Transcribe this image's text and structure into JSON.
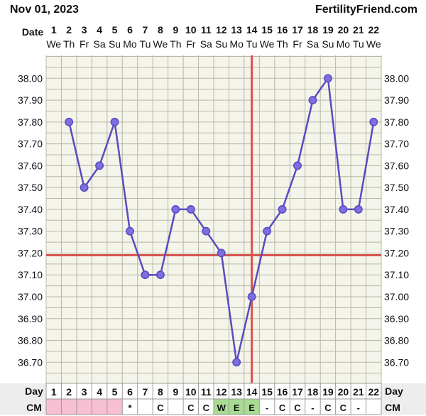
{
  "header": {
    "date": "Nov 01, 2023",
    "site": "FertilityFriend.com"
  },
  "chart_data": {
    "type": "line",
    "row_labels": {
      "date": "Date",
      "day": "Day",
      "cm": "CM"
    },
    "dates": [
      "1",
      "2",
      "3",
      "4",
      "5",
      "6",
      "7",
      "8",
      "9",
      "10",
      "11",
      "12",
      "13",
      "14",
      "15",
      "16",
      "17",
      "18",
      "19",
      "20",
      "21",
      "22"
    ],
    "weekdays": [
      "We",
      "Th",
      "Fr",
      "Sa",
      "Su",
      "Mo",
      "Tu",
      "We",
      "Th",
      "Fr",
      "Sa",
      "Su",
      "Mo",
      "Tu",
      "We",
      "Th",
      "Fr",
      "Sa",
      "Su",
      "Mo",
      "Tu",
      "We"
    ],
    "days": [
      "1",
      "2",
      "3",
      "4",
      "5",
      "6",
      "7",
      "8",
      "9",
      "10",
      "11",
      "12",
      "13",
      "14",
      "15",
      "16",
      "17",
      "18",
      "19",
      "20",
      "21",
      "22"
    ],
    "y_ticks": [
      "38.00",
      "37.90",
      "37.80",
      "37.70",
      "37.60",
      "37.50",
      "37.40",
      "37.30",
      "37.20",
      "37.10",
      "37.00",
      "36.90",
      "36.80",
      "36.70"
    ],
    "ylim": [
      36.6,
      38.1
    ],
    "series": [
      {
        "x": [
          2,
          3,
          4,
          5,
          6,
          7,
          8,
          9,
          10,
          11,
          12,
          13,
          14,
          15,
          16,
          17,
          18,
          19,
          20,
          21,
          22
        ],
        "values": [
          37.8,
          37.5,
          37.6,
          37.8,
          37.3,
          37.1,
          37.1,
          37.4,
          37.4,
          37.3,
          37.2,
          36.7,
          37.0,
          37.3,
          37.4,
          37.6,
          37.9,
          38.0,
          37.4,
          37.4,
          37.8
        ]
      }
    ],
    "coverline": 37.19,
    "ovulation_day": 14,
    "cm": [
      {
        "text": "",
        "type": "period"
      },
      {
        "text": "",
        "type": "period"
      },
      {
        "text": "",
        "type": "period"
      },
      {
        "text": "",
        "type": "period"
      },
      {
        "text": "",
        "type": "period"
      },
      {
        "text": "*",
        "type": "none"
      },
      {
        "text": "",
        "type": "none"
      },
      {
        "text": "C",
        "type": "none"
      },
      {
        "text": "",
        "type": "none"
      },
      {
        "text": "C",
        "type": "none"
      },
      {
        "text": "C",
        "type": "none"
      },
      {
        "text": "W",
        "type": "fertile"
      },
      {
        "text": "E",
        "type": "fertile"
      },
      {
        "text": "E",
        "type": "fertile"
      },
      {
        "text": "-",
        "type": "none"
      },
      {
        "text": "C",
        "type": "none"
      },
      {
        "text": "C",
        "type": "none"
      },
      {
        "text": "-",
        "type": "none"
      },
      {
        "text": "C",
        "type": "none"
      },
      {
        "text": "C",
        "type": "none"
      },
      {
        "text": "-",
        "type": "none"
      },
      {
        "text": "",
        "type": "none"
      }
    ],
    "colors": {
      "line": "#5a4bc0",
      "point_fill": "#7c6fe0",
      "coverline": "#d9534f",
      "ovulation": "#d9534f",
      "grid": "#b7b7a6",
      "plot_bg": "#f4f4ea",
      "period": "#f7bfd3",
      "fertile": "#a8dc93",
      "footer_bg": "#ededed"
    }
  }
}
